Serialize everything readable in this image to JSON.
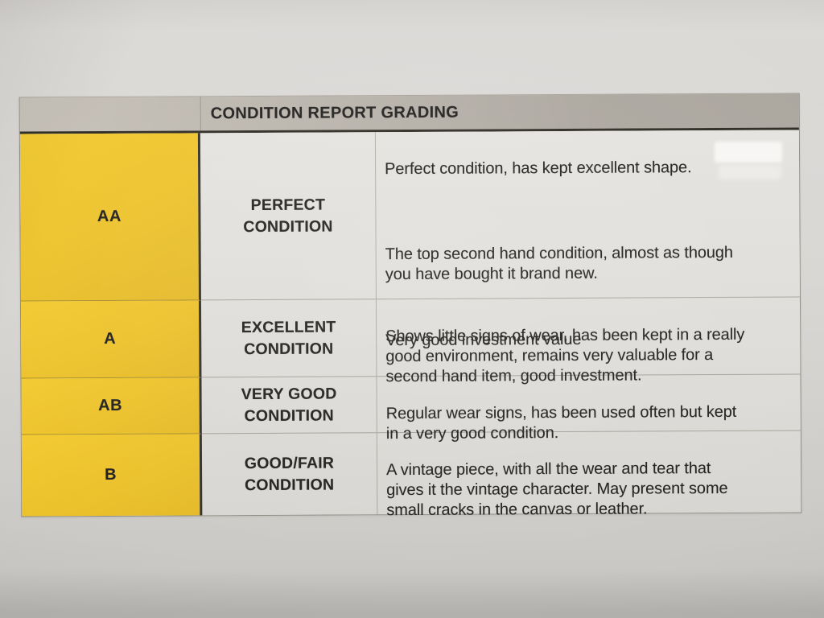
{
  "table": {
    "title": "CONDITION REPORT GRADING",
    "rows": [
      {
        "grade": "AA",
        "condition": "PERFECT\nCONDITION",
        "description_paragraphs": [
          "Perfect condition, has kept excellent shape.",
          "The top second hand condition, almost as though\nyou have bought it brand new.",
          "Very good investment value"
        ]
      },
      {
        "grade": "A",
        "condition": "EXCELLENT\nCONDITION",
        "description_paragraphs": [
          "Shows little signs of wear, has been kept in a really\ngood environment, remains very valuable for a\nsecond hand item, good investment."
        ]
      },
      {
        "grade": "AB",
        "condition": "VERY GOOD\nCONDITION",
        "description_paragraphs": [
          "Regular wear signs, has been used often but kept\nin a very good condition."
        ]
      },
      {
        "grade": "B",
        "condition": "GOOD/FAIR\nCONDITION",
        "description_paragraphs": [
          "A vintage piece, with all the wear and tear that\ngives it the vintage character. May present some\nsmall cracks in the canvas or leather."
        ]
      }
    ],
    "colors": {
      "grade_cell_yellow": "#ecc22c",
      "header_gray": "#aba69e",
      "line_dark": "#2e2b24",
      "paper": "#d8d6d3",
      "text": "#242220"
    }
  }
}
